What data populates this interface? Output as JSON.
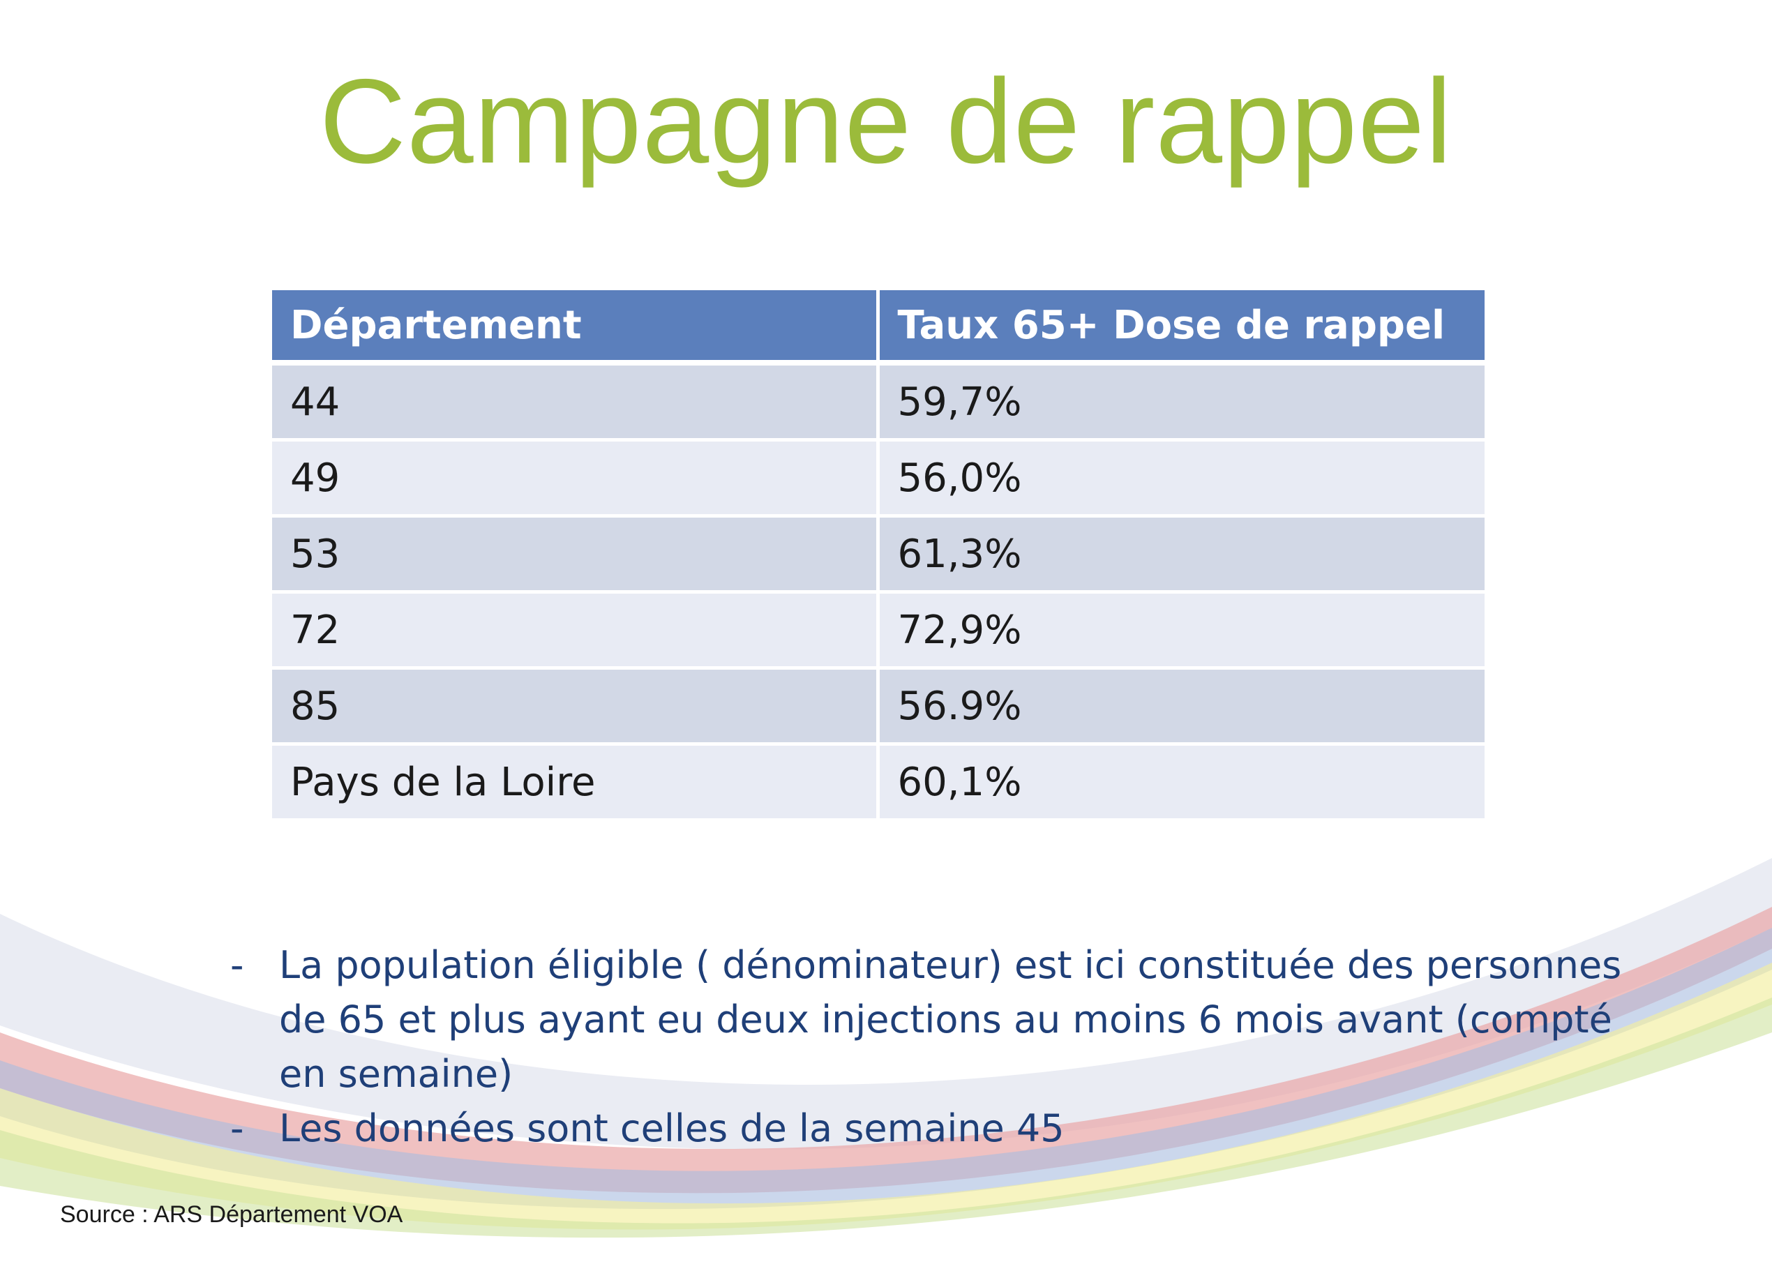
{
  "slide": {
    "title": "Campagne de rappel",
    "table": {
      "headers": [
        "Département",
        "Taux 65+ Dose de rappel"
      ],
      "rows": [
        [
          "44",
          "59,7%"
        ],
        [
          "49",
          "56,0%"
        ],
        [
          "53",
          "61,3%"
        ],
        [
          "72",
          "72,9%"
        ],
        [
          "85",
          "56.9%"
        ],
        [
          "Pays de la Loire",
          "60,1%"
        ]
      ]
    },
    "notes": [
      {
        "dash": "-",
        "text": "La population éligible ( dénominateur)  est ici  constituée des personnes de 65 et plus ayant eu  deux injections au moins 6 mois avant (compté en semaine)"
      },
      {
        "dash": "-",
        "text": "Les données sont celles de la semaine 45"
      }
    ],
    "source": "Source : ARS Département VOA"
  },
  "colors": {
    "title": "#9bbb3b",
    "header_bg": "#5b7fbc",
    "row_odd": "#d2d8e6",
    "row_even": "#e8ebf4",
    "notes_text": "#1f3f78"
  }
}
